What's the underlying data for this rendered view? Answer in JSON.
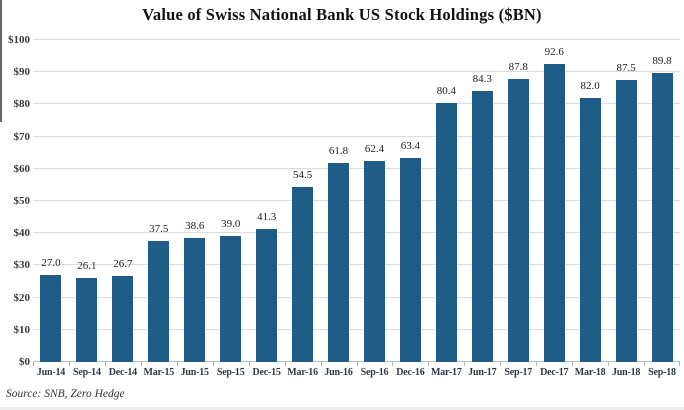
{
  "chart_data": {
    "type": "bar",
    "title": "Value of Swiss National Bank US Stock Holdings ($BN)",
    "categories": [
      "Jun-14",
      "Sep-14",
      "Dec-14",
      "Mar-15",
      "Jun-15",
      "Sep-15",
      "Dec-15",
      "Mar-16",
      "Jun-16",
      "Sep-16",
      "Dec-16",
      "Mar-17",
      "Jun-17",
      "Sep-17",
      "Dec-17",
      "Mar-18",
      "Jun-18",
      "Sep-18"
    ],
    "values": [
      27.0,
      26.1,
      26.7,
      37.5,
      38.6,
      39.0,
      41.3,
      54.5,
      61.8,
      62.4,
      63.4,
      80.4,
      84.3,
      87.8,
      92.6,
      82.0,
      87.5,
      89.8
    ],
    "bar_labels": [
      "27.0",
      "26.1",
      "26.7",
      "37.5",
      "38.6",
      "39.0",
      "41.3",
      "54.5",
      "61.8",
      "62.4",
      "63.4",
      "80.4",
      "84.3",
      "87.8",
      "92.6",
      "82.0",
      "87.5",
      "89.8"
    ],
    "xlabel": "",
    "ylabel": "",
    "ylim": [
      0,
      100
    ],
    "yticks": [
      {
        "value": 0,
        "label": "$0"
      },
      {
        "value": 10,
        "label": "$10"
      },
      {
        "value": 20,
        "label": "$20"
      },
      {
        "value": 30,
        "label": "$30"
      },
      {
        "value": 40,
        "label": "$40"
      },
      {
        "value": 50,
        "label": "$50"
      },
      {
        "value": 60,
        "label": "$60"
      },
      {
        "value": 70,
        "label": "$70"
      },
      {
        "value": 80,
        "label": "$80"
      },
      {
        "value": 90,
        "label": "$90"
      },
      {
        "value": 100,
        "label": "$100"
      }
    ],
    "grid": true,
    "gridlines": "horizontal",
    "legend": false,
    "source_note": "Source: SNB, Zero Hedge",
    "colors": {
      "bar": "#1f5c87",
      "gridline": "#dcdcdc",
      "axis_line": "#bfbfbf",
      "tick": "#b5b5b5",
      "title_text": "#121212",
      "value_text": "#222222",
      "x_label_text": "#303a46",
      "y_label_text": "#3a3a3a",
      "source_text": "#333333"
    }
  }
}
